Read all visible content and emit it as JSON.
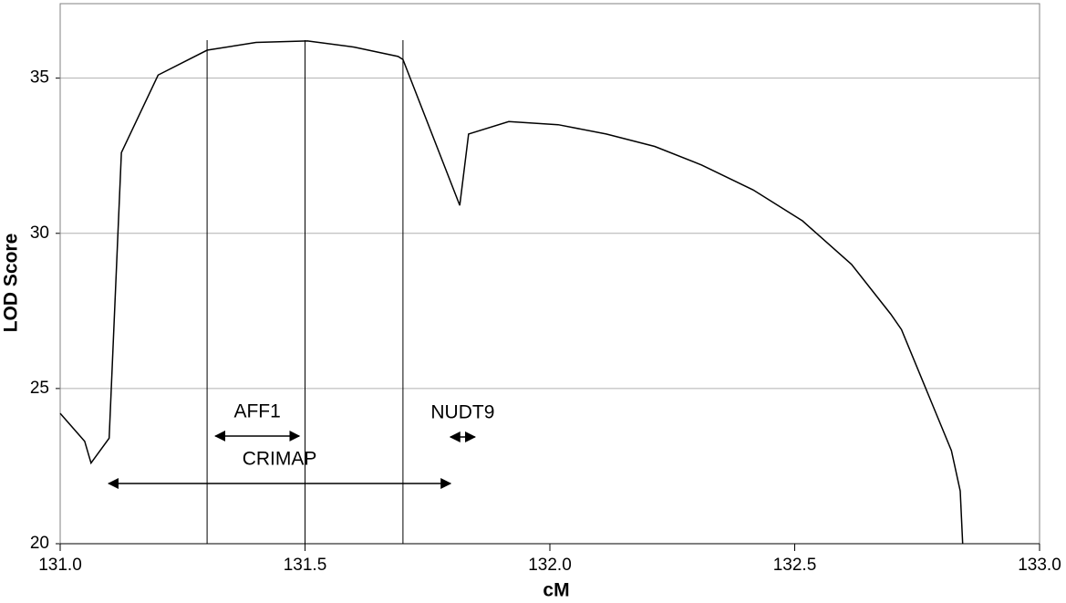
{
  "chart_data": {
    "type": "line",
    "xlabel": "cM",
    "ylabel": "LOD Score",
    "x": [
      131.0,
      131.05,
      131.063,
      131.1,
      131.125,
      131.2,
      131.3,
      131.4,
      131.505,
      131.6,
      131.69,
      131.7,
      131.816,
      131.834,
      131.916,
      132.017,
      132.115,
      132.214,
      132.31,
      132.415,
      132.516,
      132.616,
      132.696,
      132.718,
      132.82,
      132.838,
      132.843
    ],
    "series": [
      {
        "color": "#000000",
        "values": [
          24.2,
          23.3,
          22.6,
          23.4,
          32.6,
          35.1,
          35.9,
          36.15,
          36.2,
          36.0,
          35.7,
          35.6,
          30.9,
          33.2,
          33.6,
          33.5,
          33.2,
          32.8,
          32.2,
          31.4,
          30.4,
          29.0,
          27.4,
          26.9,
          23.0,
          21.7,
          20.0
        ]
      }
    ],
    "vlines": [
      131.3,
      131.5,
      131.7
    ],
    "annotations": [
      {
        "text": "AFF1",
        "x1": 131.317,
        "x2": 131.488,
        "y": 23.47
      },
      {
        "text": "NUDT9",
        "x1": 131.797,
        "x2": 131.847,
        "y": 23.44
      },
      {
        "text": "CRIMAP",
        "x1": 131.099,
        "x2": 131.797,
        "y": 21.94
      }
    ],
    "xlim": [
      131.0,
      133.0
    ],
    "xticks": [
      {
        "value": 131.0,
        "label": "131.0"
      },
      {
        "value": 131.5,
        "label": "131.5"
      },
      {
        "value": 132.0,
        "label": "132.0"
      },
      {
        "value": 132.5,
        "label": "132.5"
      },
      {
        "value": 133.0,
        "label": "133.0"
      }
    ],
    "ylim": [
      20,
      37.4
    ],
    "yticks": [
      20,
      25,
      30,
      35
    ],
    "grid": true
  }
}
